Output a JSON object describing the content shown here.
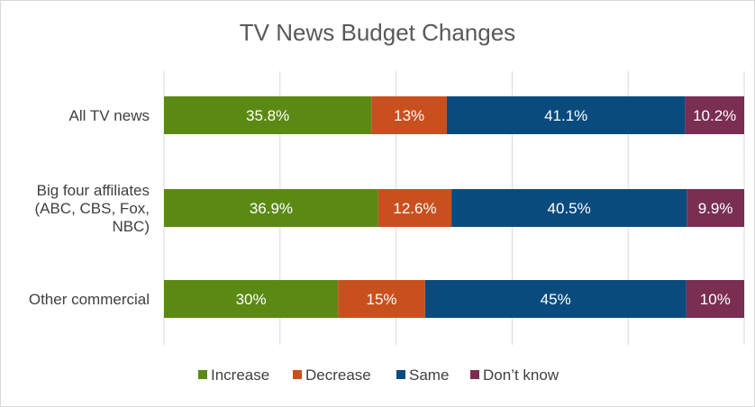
{
  "chart_data": {
    "type": "bar",
    "orientation": "horizontal",
    "stacked": "percent",
    "title": "TV News Budget Changes",
    "categories": [
      [
        "All TV news"
      ],
      [
        "Big four affiliates",
        "(ABC, CBS, Fox,",
        "NBC)"
      ],
      [
        "Other commercial"
      ]
    ],
    "series": [
      {
        "name": "Increase",
        "color": "#5b8a14",
        "values": [
          35.8,
          36.9,
          30
        ],
        "labels": [
          "35.8%",
          "36.9%",
          "30%"
        ]
      },
      {
        "name": "Decrease",
        "color": "#c8501e",
        "values": [
          13,
          12.6,
          15
        ],
        "labels": [
          "13%",
          "12.6%",
          "15%"
        ]
      },
      {
        "name": "Same",
        "color": "#0a4b7d",
        "values": [
          41.1,
          40.5,
          45
        ],
        "labels": [
          "41.1%",
          "40.5%",
          "45%"
        ]
      },
      {
        "name": "Don’t know",
        "color": "#7a2e52",
        "values": [
          10.2,
          9.9,
          10
        ],
        "labels": [
          "10.2%",
          "9.9%",
          "10%"
        ]
      }
    ],
    "xlim": [
      0,
      100
    ],
    "grid": true,
    "legend_position": "bottom"
  }
}
